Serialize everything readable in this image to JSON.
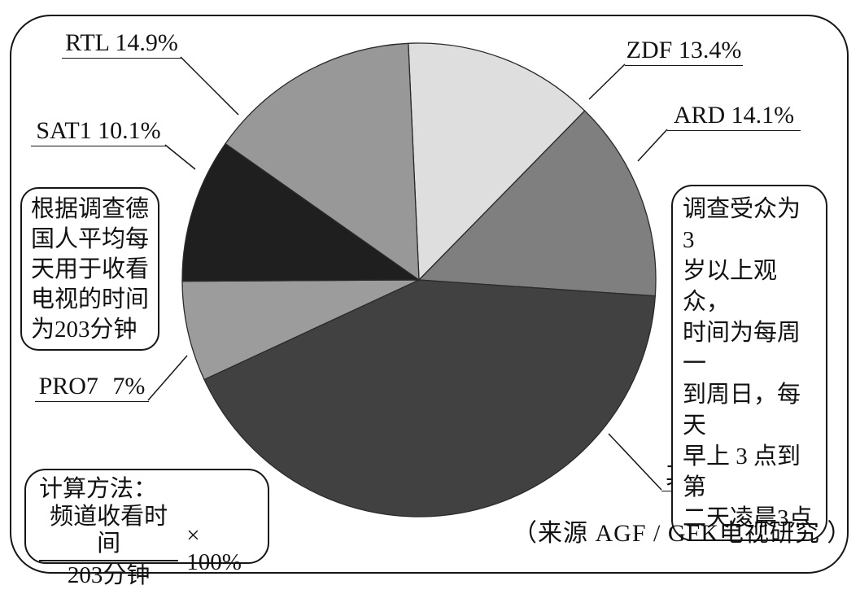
{
  "chart_data": {
    "type": "pie",
    "title": "",
    "unit": "%",
    "start_angle_deg": -2.6,
    "direction": "clockwise",
    "slices": [
      {
        "name": "ZDF",
        "value": 13.4,
        "label": "ZDF 13.4%",
        "color": "#dedede"
      },
      {
        "name": "ARD",
        "value": 14.1,
        "label": "ARD 14.1%",
        "color": "#7f7f7f"
      },
      {
        "name": "其他",
        "value": 43.1,
        "label": "其他 43.1%",
        "color": "#414141"
      },
      {
        "name": "PRO7",
        "value": 7,
        "label": "PRO7 7%",
        "color": "#9c9c9c"
      },
      {
        "name": "SAT1",
        "value": 10.1,
        "label": "SAT1 10.1%",
        "color": "#1f1f1f"
      },
      {
        "name": "RTL",
        "value": 14.9,
        "label": "RTL 14.9%",
        "color": "#989898"
      }
    ],
    "annotations": {
      "left_note": "根据调查德\n国人平均每\n天用于收看\n电视的时间\n为203分钟",
      "right_note": "调查受众为 3\n岁以上观众，\n时间为每周一\n到周日，每天\n早上 3 点到第\n二天凌晨3点",
      "calc_title": "计算方法：",
      "calc_numerator": "频道收看时间",
      "calc_denominator": "203分钟",
      "calc_multiplier": "× 100%",
      "source_note": "（来源 AGF / GFK电视研究 ）"
    },
    "legend_position": "callouts",
    "grid": false
  }
}
